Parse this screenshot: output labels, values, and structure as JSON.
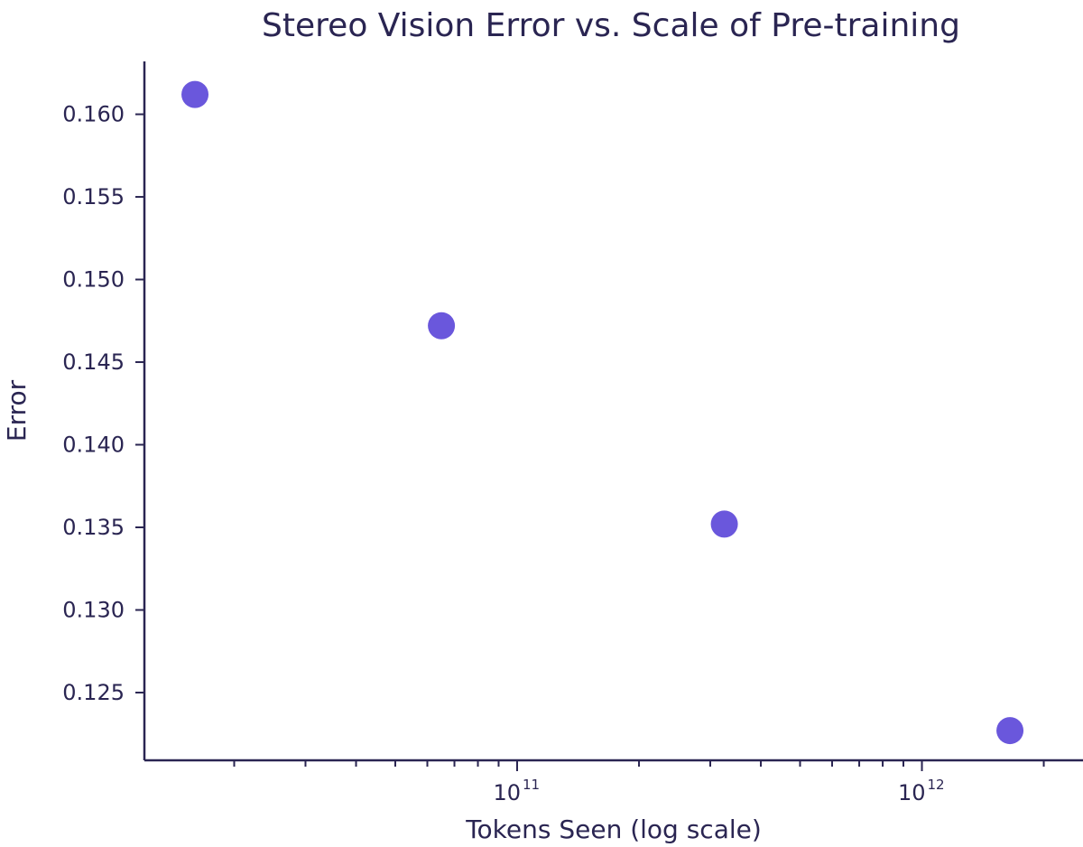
{
  "chart_data": {
    "type": "scatter",
    "title": "Stereo Vision Error vs. Scale of Pre-training",
    "xlabel": "Tokens Seen (log scale)",
    "ylabel": "Error",
    "x_scale": "log",
    "xlim": [
      12000000000.0,
      2500000000000.0
    ],
    "ylim": [
      0.1209,
      0.1632
    ],
    "grid": false,
    "x_ticks": [
      {
        "value": 100000000000.0,
        "base": "10",
        "exp": "11"
      },
      {
        "value": 1000000000000.0,
        "base": "10",
        "exp": "12"
      }
    ],
    "y_ticks": [
      {
        "value": 0.125,
        "label": "0.125"
      },
      {
        "value": 0.13,
        "label": "0.130"
      },
      {
        "value": 0.135,
        "label": "0.135"
      },
      {
        "value": 0.14,
        "label": "0.140"
      },
      {
        "value": 0.145,
        "label": "0.145"
      },
      {
        "value": 0.15,
        "label": "0.150"
      },
      {
        "value": 0.155,
        "label": "0.155"
      },
      {
        "value": 0.16,
        "label": "0.160"
      }
    ],
    "series": [
      {
        "color": "#6a57dc",
        "points": [
          {
            "x": 16000000000.0,
            "y": 0.1612
          },
          {
            "x": 65000000000.0,
            "y": 0.1472
          },
          {
            "x": 325000000000.0,
            "y": 0.1352
          },
          {
            "x": 1650000000000.0,
            "y": 0.1227
          }
        ]
      }
    ]
  }
}
